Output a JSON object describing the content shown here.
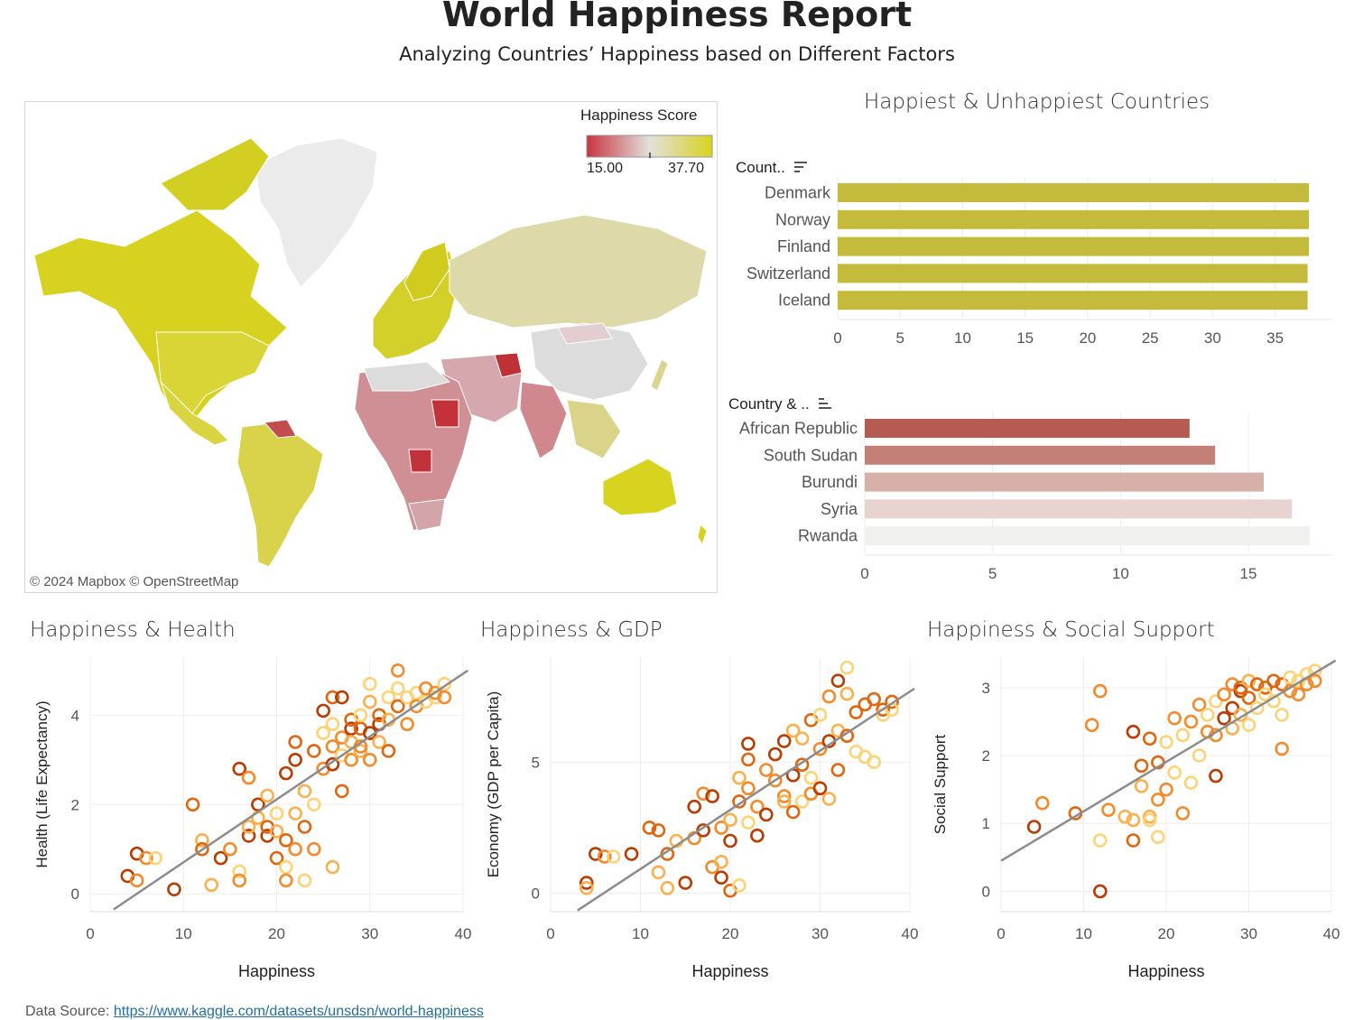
{
  "header": {
    "title": "World Happiness Report",
    "subtitle": "Analyzing Countries’ Happiness based on Different Factors"
  },
  "map": {
    "legend_title": "Happiness Score",
    "legend_min": "15.00",
    "legend_max": "37.70",
    "legend_colors": [
      "#c8343f",
      "#e0e0e0",
      "#d9d31f"
    ],
    "credit": "© 2024 Mapbox  © OpenStreetMap"
  },
  "happiest": {
    "title": "Happiest & Unhappiest Countries",
    "header": "Count..",
    "sort_icon": "sort-desc-icon"
  },
  "unhappiest": {
    "header": "Country & ..",
    "sort_icon": "sort-asc-icon"
  },
  "scatter_titles": {
    "health": "Happiness & Health",
    "gdp": "Happiness & GDP",
    "social": "Happiness & Social Support"
  },
  "footer": {
    "source_label": "Data Source:",
    "source_link": "https://www.kaggle.com/datasets/unsdsn/world-happiness"
  },
  "chart_data": [
    {
      "id": "happiest",
      "type": "bar",
      "orientation": "horizontal",
      "categories": [
        "Denmark",
        "Norway",
        "Finland",
        "Switzerland",
        "Iceland"
      ],
      "values": [
        37.7,
        37.7,
        37.7,
        37.6,
        37.6
      ],
      "xticks": [
        0,
        5,
        10,
        15,
        20,
        25,
        30,
        35
      ],
      "xlim": [
        0,
        37.7
      ],
      "color": "#c4bb3d"
    },
    {
      "id": "unhappiest",
      "type": "bar",
      "orientation": "horizontal",
      "categories": [
        "African Republic",
        "South Sudan",
        "Burundi",
        "Syria",
        "Rwanda"
      ],
      "values": [
        12.7,
        13.7,
        15.6,
        16.7,
        17.4
      ],
      "xticks": [
        0,
        5,
        10,
        15
      ],
      "xlim": [
        0,
        17.4
      ],
      "colors": [
        "#b55b52",
        "#c47f76",
        "#d8b0aa",
        "#e8d3d0",
        "#f0f0ef"
      ]
    },
    {
      "id": "health",
      "type": "scatter",
      "xlabel": "Happiness",
      "ylabel": "Health (Life Expectancy)",
      "xlim": [
        0,
        40
      ],
      "ylim": [
        -0.4,
        5.3
      ],
      "xticks": [
        0,
        10,
        20,
        30,
        40
      ],
      "yticks": [
        0,
        2,
        4
      ],
      "trend": [
        [
          2.5,
          -0.35
        ],
        [
          40.5,
          5.0
        ]
      ],
      "palette": [
        "#fdd377",
        "#fbb04e",
        "#f38b2c",
        "#e0660f",
        "#b83c04"
      ],
      "points": [
        [
          4,
          0.4
        ],
        [
          5,
          0.3
        ],
        [
          5,
          0.9
        ],
        [
          6,
          0.8
        ],
        [
          7,
          0.8
        ],
        [
          9,
          0.1
        ],
        [
          11,
          2.0
        ],
        [
          12,
          1.2
        ],
        [
          12,
          1.0
        ],
        [
          13,
          0.2
        ],
        [
          14,
          0.8
        ],
        [
          15,
          1.0
        ],
        [
          16,
          0.5
        ],
        [
          16,
          0.3
        ],
        [
          16,
          2.8
        ],
        [
          17,
          2.6
        ],
        [
          17,
          1.3
        ],
        [
          17,
          1.5
        ],
        [
          18,
          2.0
        ],
        [
          18,
          1.7
        ],
        [
          19,
          1.3
        ],
        [
          19,
          2.2
        ],
        [
          19,
          1.5
        ],
        [
          20,
          1.4
        ],
        [
          20,
          0.8
        ],
        [
          20,
          1.8
        ],
        [
          21,
          1.2
        ],
        [
          21,
          0.6
        ],
        [
          21,
          0.3
        ],
        [
          21,
          2.7
        ],
        [
          22,
          1.0
        ],
        [
          22,
          3.0
        ],
        [
          22,
          1.8
        ],
        [
          22,
          3.4
        ],
        [
          23,
          2.3
        ],
        [
          23,
          1.5
        ],
        [
          23,
          0.3
        ],
        [
          24,
          3.2
        ],
        [
          24,
          2.0
        ],
        [
          24,
          1.0
        ],
        [
          25,
          3.6
        ],
        [
          25,
          2.8
        ],
        [
          25,
          4.1
        ],
        [
          26,
          3.3
        ],
        [
          26,
          2.9
        ],
        [
          26,
          0.6
        ],
        [
          26,
          4.4
        ],
        [
          26,
          3.8
        ],
        [
          27,
          2.3
        ],
        [
          27,
          3.1
        ],
        [
          27,
          3.5
        ],
        [
          27,
          4.4
        ],
        [
          28,
          3.0
        ],
        [
          28,
          3.7
        ],
        [
          28,
          3.4
        ],
        [
          28,
          3.9
        ],
        [
          29,
          3.2
        ],
        [
          29,
          3.7
        ],
        [
          29,
          4.0
        ],
        [
          29,
          3.3
        ],
        [
          30,
          4.7
        ],
        [
          30,
          3.0
        ],
        [
          30,
          3.6
        ],
        [
          30,
          4.3
        ],
        [
          31,
          3.8
        ],
        [
          31,
          3.4
        ],
        [
          31,
          4.0
        ],
        [
          32,
          3.9
        ],
        [
          32,
          3.2
        ],
        [
          32,
          4.4
        ],
        [
          33,
          4.2
        ],
        [
          33,
          4.6
        ],
        [
          33,
          5.0
        ],
        [
          34,
          4.4
        ],
        [
          34,
          3.8
        ],
        [
          35,
          4.5
        ],
        [
          35,
          4.2
        ],
        [
          36,
          4.3
        ],
        [
          36,
          4.6
        ],
        [
          37,
          4.4
        ],
        [
          37,
          4.5
        ],
        [
          38,
          4.7
        ],
        [
          38,
          4.4
        ]
      ]
    },
    {
      "id": "gdp",
      "type": "scatter",
      "xlabel": "Happiness",
      "ylabel": "Economy (GDP per Capita)",
      "xlim": [
        0,
        40
      ],
      "ylim": [
        -0.7,
        9.0
      ],
      "xticks": [
        0,
        10,
        20,
        30,
        40
      ],
      "yticks": [
        0,
        5
      ],
      "trend": [
        [
          3.0,
          -0.65
        ],
        [
          40.5,
          7.8
        ]
      ],
      "palette": [
        "#fdd377",
        "#fbb04e",
        "#f38b2c",
        "#e0660f",
        "#b83c04"
      ],
      "points": [
        [
          4,
          0.4
        ],
        [
          4,
          0.2
        ],
        [
          5,
          1.5
        ],
        [
          6,
          1.4
        ],
        [
          7,
          1.4
        ],
        [
          9,
          1.5
        ],
        [
          11,
          2.5
        ],
        [
          12,
          0.8
        ],
        [
          12,
          2.4
        ],
        [
          13,
          0.2
        ],
        [
          13,
          1.5
        ],
        [
          14,
          2.0
        ],
        [
          15,
          0.4
        ],
        [
          16,
          2.1
        ],
        [
          16,
          3.3
        ],
        [
          17,
          3.8
        ],
        [
          17,
          2.4
        ],
        [
          18,
          1.0
        ],
        [
          18,
          3.7
        ],
        [
          19,
          2.5
        ],
        [
          19,
          0.6
        ],
        [
          19,
          1.2
        ],
        [
          20,
          2.0
        ],
        [
          20,
          2.8
        ],
        [
          20,
          0.1
        ],
        [
          21,
          4.4
        ],
        [
          21,
          3.5
        ],
        [
          21,
          0.3
        ],
        [
          22,
          5.1
        ],
        [
          22,
          2.7
        ],
        [
          22,
          4.0
        ],
        [
          22,
          5.7
        ],
        [
          23,
          3.3
        ],
        [
          23,
          2.2
        ],
        [
          24,
          4.7
        ],
        [
          24,
          3.0
        ],
        [
          25,
          4.3
        ],
        [
          25,
          5.3
        ],
        [
          26,
          3.7
        ],
        [
          26,
          5.8
        ],
        [
          26,
          3.5
        ],
        [
          27,
          4.5
        ],
        [
          27,
          6.2
        ],
        [
          27,
          3.1
        ],
        [
          28,
          5.9
        ],
        [
          28,
          4.9
        ],
        [
          28,
          3.5
        ],
        [
          29,
          6.6
        ],
        [
          29,
          4.4
        ],
        [
          29,
          3.8
        ],
        [
          30,
          6.8
        ],
        [
          30,
          5.5
        ],
        [
          30,
          4.0
        ],
        [
          31,
          7.5
        ],
        [
          31,
          5.8
        ],
        [
          31,
          3.6
        ],
        [
          32,
          8.1
        ],
        [
          32,
          6.2
        ],
        [
          32,
          4.7
        ],
        [
          33,
          7.6
        ],
        [
          33,
          6.0
        ],
        [
          33,
          8.6
        ],
        [
          34,
          6.9
        ],
        [
          34,
          5.4
        ],
        [
          35,
          7.2
        ],
        [
          35,
          5.2
        ],
        [
          36,
          7.4
        ],
        [
          36,
          5.0
        ],
        [
          37,
          7.0
        ],
        [
          37,
          6.8
        ],
        [
          38,
          7.3
        ],
        [
          38,
          7.0
        ]
      ]
    },
    {
      "id": "social",
      "type": "scatter",
      "xlabel": "Happiness",
      "ylabel": "Social Support",
      "xlim": [
        0,
        40
      ],
      "ylim": [
        -0.3,
        3.45
      ],
      "xticks": [
        0,
        10,
        20,
        30,
        40
      ],
      "yticks": [
        0,
        1,
        2,
        3
      ],
      "trend": [
        [
          0,
          0.45
        ],
        [
          40.5,
          3.4
        ]
      ],
      "palette": [
        "#fdd377",
        "#fbb04e",
        "#f38b2c",
        "#e0660f",
        "#b83c04"
      ],
      "points": [
        [
          4,
          0.95
        ],
        [
          5,
          1.3
        ],
        [
          9,
          1.15
        ],
        [
          11,
          2.45
        ],
        [
          12,
          0.75
        ],
        [
          12,
          2.95
        ],
        [
          12,
          0.0
        ],
        [
          13,
          1.2
        ],
        [
          15,
          1.1
        ],
        [
          16,
          2.35
        ],
        [
          16,
          1.05
        ],
        [
          16,
          0.75
        ],
        [
          17,
          1.55
        ],
        [
          17,
          1.85
        ],
        [
          18,
          1.1
        ],
        [
          18,
          2.25
        ],
        [
          18,
          1.05
        ],
        [
          19,
          1.9
        ],
        [
          19,
          0.8
        ],
        [
          19,
          1.35
        ],
        [
          20,
          2.2
        ],
        [
          20,
          1.5
        ],
        [
          21,
          1.75
        ],
        [
          21,
          2.55
        ],
        [
          22,
          2.3
        ],
        [
          22,
          1.15
        ],
        [
          23,
          1.6
        ],
        [
          23,
          2.5
        ],
        [
          24,
          2.0
        ],
        [
          24,
          2.75
        ],
        [
          25,
          2.6
        ],
        [
          25,
          2.35
        ],
        [
          26,
          2.8
        ],
        [
          26,
          2.3
        ],
        [
          26,
          1.7
        ],
        [
          27,
          2.9
        ],
        [
          27,
          2.55
        ],
        [
          28,
          3.05
        ],
        [
          28,
          2.7
        ],
        [
          28,
          2.4
        ],
        [
          29,
          2.95
        ],
        [
          29,
          2.6
        ],
        [
          29,
          3.0
        ],
        [
          30,
          3.1
        ],
        [
          30,
          2.85
        ],
        [
          30,
          2.45
        ],
        [
          31,
          3.05
        ],
        [
          31,
          2.7
        ],
        [
          32,
          3.0
        ],
        [
          32,
          2.9
        ],
        [
          33,
          3.1
        ],
        [
          33,
          2.8
        ],
        [
          34,
          3.05
        ],
        [
          34,
          2.6
        ],
        [
          34,
          2.1
        ],
        [
          35,
          3.15
        ],
        [
          35,
          2.95
        ],
        [
          36,
          3.1
        ],
        [
          36,
          2.9
        ],
        [
          37,
          3.2
        ],
        [
          37,
          3.05
        ],
        [
          38,
          3.25
        ],
        [
          38,
          3.1
        ]
      ]
    }
  ]
}
